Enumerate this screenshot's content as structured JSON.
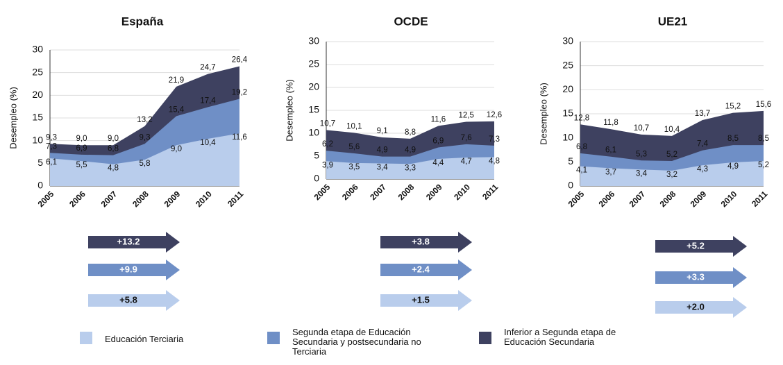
{
  "chart_data": [
    {
      "type": "area",
      "title": "España",
      "ylabel": "Desempleo (%)",
      "categories": [
        "2005",
        "2006",
        "2007",
        "2008",
        "2009",
        "2010",
        "2011"
      ],
      "ylim": [
        0,
        30
      ],
      "yticks": [
        0,
        5,
        10,
        15,
        20,
        25,
        30
      ],
      "series": [
        {
          "values": [
            6.1,
            5.5,
            4.8,
            5.8,
            9.0,
            10.4,
            11.6
          ],
          "value_labels": [
            "6,1",
            "5,5",
            "4,8",
            "5,8",
            "9,0",
            "10,4",
            "11,6"
          ],
          "change": {
            "value": 5.8,
            "label": "+5.8"
          }
        },
        {
          "values": [
            7.3,
            6.9,
            6.8,
            9.3,
            15.4,
            17.4,
            19.2
          ],
          "value_labels": [
            "7,3",
            "6,9",
            "6,8",
            "9,3",
            "15,4",
            "17,4",
            "19,2"
          ],
          "change": {
            "value": 9.9,
            "label": "+9.9"
          }
        },
        {
          "values": [
            9.3,
            9.0,
            9.0,
            13.2,
            21.9,
            24.7,
            26.4
          ],
          "value_labels": [
            "9,3",
            "9,0",
            "9,0",
            "13,2",
            "21,9",
            "24,7",
            "26,4"
          ],
          "change": {
            "value": 13.2,
            "label": "+13.2"
          }
        }
      ]
    },
    {
      "type": "area",
      "title": "OCDE",
      "ylabel": "Desempleo (%)",
      "categories": [
        "2005",
        "2006",
        "2007",
        "2008",
        "2009",
        "2010",
        "2011"
      ],
      "ylim": [
        0,
        30
      ],
      "yticks": [
        0,
        5,
        10,
        15,
        20,
        25,
        30
      ],
      "series": [
        {
          "values": [
            3.9,
            3.5,
            3.4,
            3.3,
            4.4,
            4.7,
            4.8
          ],
          "value_labels": [
            "3,9",
            "3,5",
            "3,4",
            "3,3",
            "4,4",
            "4,7",
            "4,8"
          ],
          "change": {
            "value": 1.5,
            "label": "+1.5"
          }
        },
        {
          "values": [
            6.2,
            5.6,
            4.9,
            4.9,
            6.9,
            7.6,
            7.3
          ],
          "value_labels": [
            "6,2",
            "5,6",
            "4,9",
            "4,9",
            "6,9",
            "7,6",
            "7,3"
          ],
          "change": {
            "value": 2.4,
            "label": "+2.4"
          }
        },
        {
          "values": [
            10.7,
            10.1,
            9.1,
            8.8,
            11.6,
            12.5,
            12.6
          ],
          "value_labels": [
            "10,7",
            "10,1",
            "9,1",
            "8,8",
            "11,6",
            "12,5",
            "12,6"
          ],
          "change": {
            "value": 3.8,
            "label": "+3.8"
          }
        }
      ]
    },
    {
      "type": "area",
      "title": "UE21",
      "ylabel": "Desempleo (%)",
      "categories": [
        "2005",
        "2006",
        "2007",
        "2008",
        "2009",
        "2010",
        "2011"
      ],
      "ylim": [
        0,
        30
      ],
      "yticks": [
        0,
        5,
        10,
        15,
        20,
        25,
        30
      ],
      "series": [
        {
          "values": [
            4.1,
            3.7,
            3.4,
            3.2,
            4.3,
            4.9,
            5.2
          ],
          "value_labels": [
            "4,1",
            "3,7",
            "3,4",
            "3,2",
            "4,3",
            "4,9",
            "5,2"
          ],
          "change": {
            "value": 2.0,
            "label": "+2.0"
          }
        },
        {
          "values": [
            6.8,
            6.1,
            5.3,
            5.2,
            7.4,
            8.5,
            8.5
          ],
          "value_labels": [
            "6,8",
            "6,1",
            "5,3",
            "5,2",
            "7,4",
            "8,5",
            "8,5"
          ],
          "change": {
            "value": 3.3,
            "label": "+3.3"
          }
        },
        {
          "values": [
            12.8,
            11.8,
            10.7,
            10.4,
            13.7,
            15.2,
            15.6
          ],
          "value_labels": [
            "12,8",
            "11,8",
            "10,7",
            "10,4",
            "13,7",
            "15,2",
            "15,6"
          ],
          "change": {
            "value": 5.2,
            "label": "+5.2"
          }
        }
      ]
    }
  ],
  "legend": [
    {
      "name": "Educación Terciaria",
      "color": "#b9cdec"
    },
    {
      "name": "Segunda etapa de Educación Secundaria y postsecundaria no Terciaria",
      "color": "#6f8fc6"
    },
    {
      "name": "Inferior a Segunda etapa de Educación Secundaria",
      "color": "#3e4160"
    }
  ]
}
